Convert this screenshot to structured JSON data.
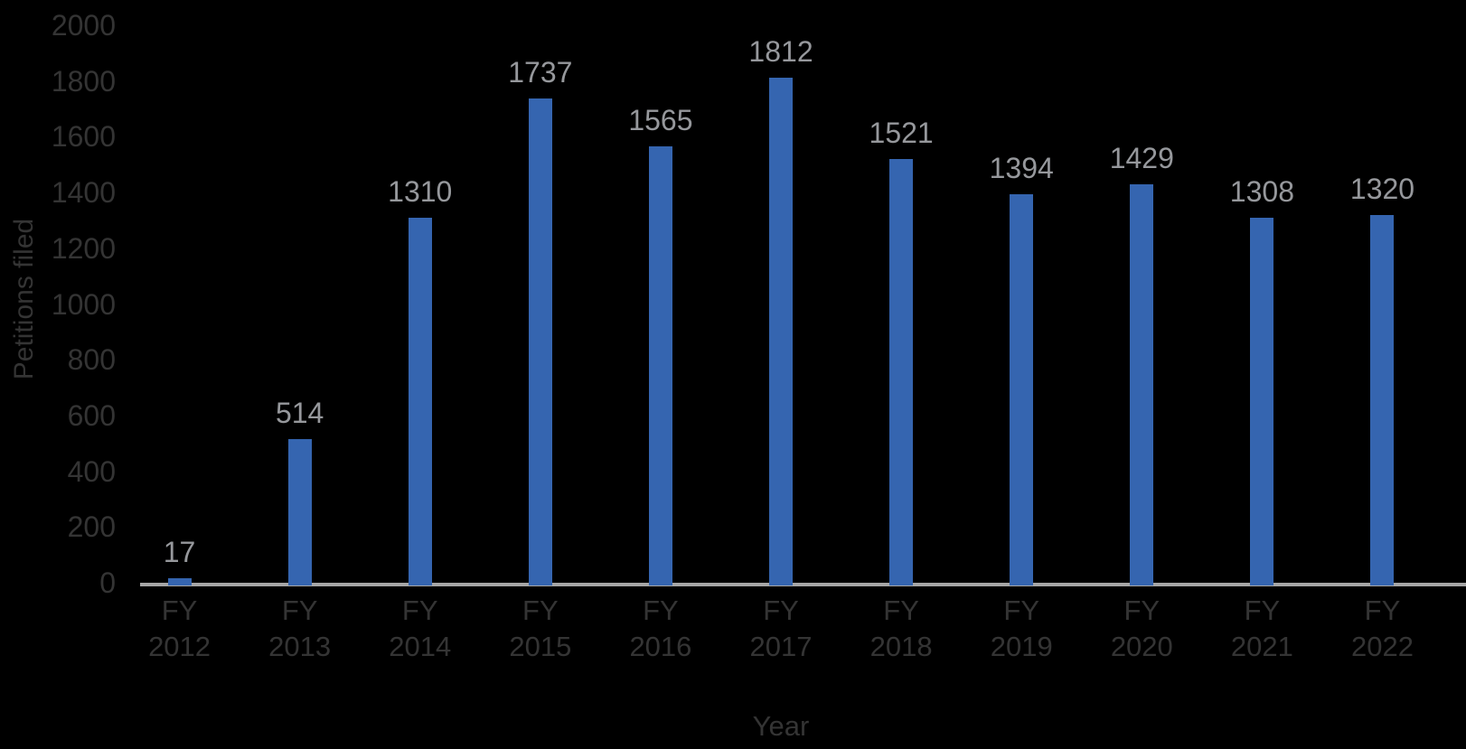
{
  "chart_data": {
    "type": "bar",
    "title": "",
    "xlabel": "Year",
    "ylabel": "Petitions filed",
    "categories": [
      "FY 2012",
      "FY 2013",
      "FY 2014",
      "FY 2015",
      "FY 2016",
      "FY 2017",
      "FY 2018",
      "FY 2019",
      "FY 2020",
      "FY 2021",
      "FY 2022"
    ],
    "values": [
      17,
      514,
      1310,
      1737,
      1565,
      1812,
      1521,
      1394,
      1429,
      1308,
      1320
    ],
    "ylim": [
      0,
      2000
    ],
    "yticks": [
      0,
      200,
      400,
      600,
      800,
      1000,
      1200,
      1400,
      1600,
      1800,
      2000
    ],
    "grid": false,
    "legend": false,
    "data_labels_shown": true,
    "colors": {
      "background": "#000000",
      "bar": "#3565b0",
      "data_label": "#96989c",
      "axis_text": "#343434",
      "axis_line": "#a6a6a6"
    }
  }
}
